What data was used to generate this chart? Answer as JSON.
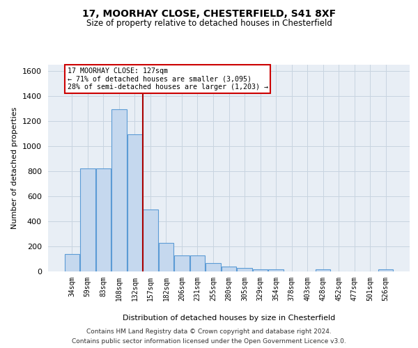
{
  "title_line1": "17, MOORHAY CLOSE, CHESTERFIELD, S41 8XF",
  "title_line2": "Size of property relative to detached houses in Chesterfield",
  "xlabel": "Distribution of detached houses by size in Chesterfield",
  "ylabel": "Number of detached properties",
  "footer_line1": "Contains HM Land Registry data © Crown copyright and database right 2024.",
  "footer_line2": "Contains public sector information licensed under the Open Government Licence v3.0.",
  "bar_labels": [
    "34sqm",
    "59sqm",
    "83sqm",
    "108sqm",
    "132sqm",
    "157sqm",
    "182sqm",
    "206sqm",
    "231sqm",
    "255sqm",
    "280sqm",
    "305sqm",
    "329sqm",
    "354sqm",
    "378sqm",
    "403sqm",
    "428sqm",
    "452sqm",
    "477sqm",
    "501sqm",
    "526sqm"
  ],
  "bar_values": [
    140,
    820,
    820,
    1295,
    1090,
    495,
    230,
    130,
    130,
    65,
    40,
    28,
    15,
    15,
    0,
    0,
    15,
    0,
    0,
    0,
    15
  ],
  "bar_color": "#c5d8ee",
  "bar_edgecolor": "#5b9bd5",
  "vline_x": 4.5,
  "vline_color": "#aa0000",
  "annotation_text": "17 MOORHAY CLOSE: 127sqm\n← 71% of detached houses are smaller (3,095)\n28% of semi-detached houses are larger (1,203) →",
  "annotation_box_edgecolor": "#cc0000",
  "annotation_bg_color": "#ffffff",
  "ylim_max": 1650,
  "yticks": [
    0,
    200,
    400,
    600,
    800,
    1000,
    1200,
    1400,
    1600
  ],
  "grid_color": "#c8d4e0",
  "plot_bg_color": "#e8eef5",
  "fig_bg_color": "#ffffff"
}
